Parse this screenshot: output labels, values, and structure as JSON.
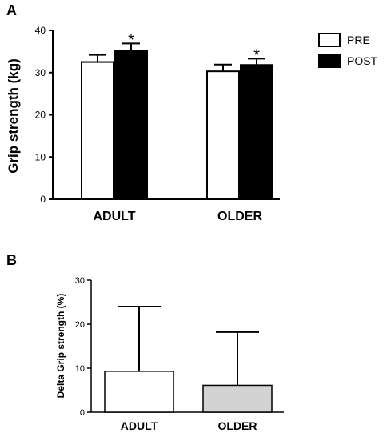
{
  "chart_data": [
    {
      "panel": "A",
      "type": "bar",
      "categories": [
        "ADULT",
        "OLDER"
      ],
      "series": [
        {
          "name": "PRE",
          "values": [
            32.5,
            30.3
          ],
          "errors": [
            1.7,
            1.6
          ],
          "fill": "#ffffff"
        },
        {
          "name": "POST",
          "values": [
            35.1,
            31.8
          ],
          "errors": [
            1.8,
            1.5
          ],
          "fill": "#000000"
        }
      ],
      "annotations": [
        {
          "series": "POST",
          "category": "ADULT",
          "text": "*"
        },
        {
          "series": "POST",
          "category": "OLDER",
          "text": "*"
        }
      ],
      "ylabel": "Grip strength (kg)",
      "xlabel": "",
      "ylim": [
        0,
        40
      ],
      "yticks": [
        0,
        10,
        20,
        30,
        40
      ],
      "legend": "top-right",
      "grid": false
    },
    {
      "panel": "B",
      "type": "bar",
      "categories": [
        "ADULT",
        "OLDER"
      ],
      "series": [
        {
          "values": [
            9.3,
            6.1
          ],
          "errors": [
            14.7,
            12.1
          ],
          "fills": [
            "#ffffff",
            "#d3d3d3"
          ]
        }
      ],
      "ylabel": "Delta Grip strength (%)",
      "xlabel": "",
      "ylim": [
        0,
        30
      ],
      "yticks": [
        0,
        10,
        20,
        30
      ],
      "legend": "none",
      "grid": false
    }
  ]
}
